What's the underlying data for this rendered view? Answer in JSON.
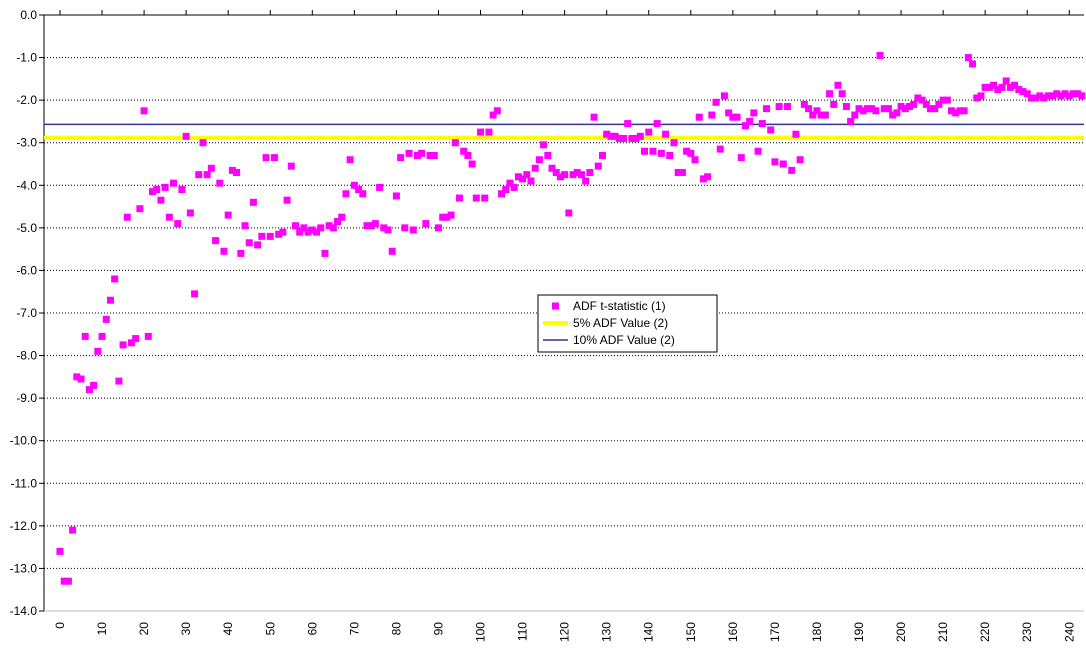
{
  "chart_data": {
    "type": "scatter",
    "x": [
      0,
      1,
      2,
      3,
      4,
      5,
      6,
      7,
      8,
      9,
      10,
      11,
      12,
      13,
      14,
      15,
      16,
      17,
      18,
      19,
      20,
      21,
      22,
      23,
      24,
      25,
      26,
      27,
      28,
      29,
      30,
      31,
      32,
      33,
      34,
      35,
      36,
      37,
      38,
      39,
      40,
      41,
      42,
      43,
      44,
      45,
      46,
      47,
      48,
      49,
      50,
      51,
      52,
      53,
      54,
      55,
      56,
      57,
      58,
      59,
      60,
      61,
      62,
      63,
      64,
      65,
      66,
      67,
      68,
      69,
      70,
      71,
      72,
      73,
      74,
      75,
      76,
      77,
      78,
      79,
      80,
      81,
      82,
      83,
      84,
      85,
      86,
      87,
      88,
      89,
      90,
      91,
      92,
      93,
      94,
      95,
      96,
      97,
      98,
      99,
      100,
      101,
      102,
      103,
      104,
      105,
      106,
      107,
      108,
      109,
      110,
      111,
      112,
      113,
      114,
      115,
      116,
      117,
      118,
      119,
      120,
      121,
      122,
      123,
      124,
      125,
      126,
      127,
      128,
      129,
      130,
      131,
      132,
      133,
      134,
      135,
      136,
      137,
      138,
      139,
      140,
      141,
      142,
      143,
      144,
      145,
      146,
      147,
      148,
      149,
      150,
      151,
      152,
      153,
      154,
      155,
      156,
      157,
      158,
      159,
      160,
      161,
      162,
      163,
      164,
      165,
      166,
      167,
      168,
      169,
      170,
      171,
      172,
      173,
      174,
      175,
      176,
      177,
      178,
      179,
      180,
      181,
      182,
      183,
      184,
      185,
      186,
      187,
      188,
      189,
      190,
      191,
      192,
      193,
      194,
      195,
      196,
      197,
      198,
      199,
      200,
      201,
      202,
      203,
      204,
      205,
      206,
      207,
      208,
      209,
      210,
      211,
      212,
      213,
      214,
      215,
      216,
      217,
      218,
      219,
      220,
      221,
      222,
      223,
      224,
      225,
      226,
      227,
      228,
      229,
      230,
      231,
      232,
      233,
      234,
      235,
      236,
      237,
      238,
      239,
      240,
      241,
      242,
      243
    ],
    "series": [
      {
        "name": "ADF t-statistic (1)",
        "color": "#ff00ff",
        "values": [
          -12.6,
          -13.3,
          -13.3,
          -12.1,
          -8.5,
          -8.55,
          -7.55,
          -8.8,
          -8.7,
          -7.9,
          -7.55,
          -7.15,
          -6.7,
          -6.2,
          -8.6,
          -7.75,
          -4.75,
          -7.7,
          -7.6,
          -4.55,
          -2.25,
          -7.55,
          -4.15,
          -4.1,
          -4.35,
          -4.05,
          -4.75,
          -3.95,
          -4.9,
          -4.1,
          -2.85,
          -4.65,
          -6.55,
          -3.75,
          -3.0,
          -3.75,
          -3.6,
          -5.3,
          -3.95,
          -5.55,
          -4.7,
          -3.65,
          -3.7,
          -5.6,
          -4.95,
          -5.35,
          -4.4,
          -5.4,
          -5.2,
          -3.35,
          -5.2,
          -3.35,
          -5.15,
          -5.1,
          -4.35,
          -3.55,
          -4.95,
          -5.1,
          -5.0,
          -5.1,
          -5.05,
          -5.1,
          -5.0,
          -5.6,
          -4.95,
          -5.0,
          -4.85,
          -4.75,
          -4.2,
          -3.4,
          -4.0,
          -4.1,
          -4.2,
          -4.95,
          -4.95,
          -4.9,
          -4.05,
          -5.0,
          -5.05,
          -5.55,
          -4.25,
          -3.35,
          -5.0,
          -3.25,
          -5.05,
          -3.3,
          -3.25,
          -4.9,
          -3.3,
          -3.3,
          -5.0,
          -4.75,
          -4.75,
          -4.7,
          -3.0,
          -4.3,
          -3.2,
          -3.3,
          -3.5,
          -4.3,
          -2.75,
          -4.3,
          -2.75,
          -2.35,
          -2.25,
          -4.2,
          -4.1,
          -3.95,
          -4.05,
          -3.8,
          -3.85,
          -3.75,
          -3.9,
          -3.6,
          -3.4,
          -3.05,
          -3.3,
          -3.6,
          -3.7,
          -3.8,
          -3.75,
          -4.65,
          -3.75,
          -3.7,
          -3.75,
          -3.9,
          -3.7,
          -2.4,
          -3.55,
          -3.3,
          -2.8,
          -2.85,
          -2.85,
          -2.9,
          -2.9,
          -2.55,
          -2.9,
          -2.9,
          -2.85,
          -3.2,
          -2.75,
          -3.2,
          -2.55,
          -3.25,
          -2.8,
          -3.3,
          -3.0,
          -3.7,
          -3.7,
          -3.2,
          -3.25,
          -3.4,
          -2.4,
          -3.85,
          -3.8,
          -2.35,
          -2.05,
          -3.15,
          -1.9,
          -2.3,
          -2.4,
          -2.4,
          -3.35,
          -2.6,
          -2.5,
          -2.3,
          -3.2,
          -2.55,
          -2.2,
          -2.7,
          -3.45,
          -2.15,
          -3.5,
          -2.15,
          -3.65,
          -2.8,
          -3.4,
          -2.1,
          -2.2,
          -2.35,
          -2.25,
          -2.35,
          -2.35,
          -1.85,
          -2.1,
          -1.65,
          -1.85,
          -2.15,
          -2.5,
          -2.35,
          -2.2,
          -2.25,
          -2.2,
          -2.2,
          -2.25,
          -0.95,
          -2.2,
          -2.2,
          -2.35,
          -2.3,
          -2.15,
          -2.2,
          -2.15,
          -2.1,
          -1.95,
          -2.0,
          -2.1,
          -2.2,
          -2.2,
          -2.1,
          -2.0,
          -2.0,
          -2.25,
          -2.3,
          -2.25,
          -2.25,
          -1.0,
          -1.15,
          -1.95,
          -1.9,
          -1.7,
          -1.7,
          -1.65,
          -1.75,
          -1.7,
          -1.55,
          -1.7,
          -1.65,
          -1.75,
          -1.8,
          -1.85,
          -1.95,
          -1.95,
          -1.9,
          -1.95,
          -1.9,
          -1.9,
          -1.85,
          -1.9,
          -1.85,
          -1.9,
          -1.85,
          -1.85,
          -1.9
        ]
      }
    ],
    "lines": [
      {
        "name": "5% ADF Value (2)",
        "color": "#ffff00",
        "value": -2.88
      },
      {
        "name": "10% ADF Value (2)",
        "color": "#333399",
        "value": -2.57
      }
    ],
    "xlim": [
      -3.8,
      243.5
    ],
    "ylim": [
      -14,
      0
    ],
    "xticks": [
      0,
      10,
      20,
      30,
      40,
      50,
      60,
      70,
      80,
      90,
      100,
      110,
      120,
      130,
      140,
      150,
      160,
      170,
      180,
      190,
      200,
      210,
      220,
      230,
      240
    ],
    "yticks": [
      {
        "value": 0,
        "label": "0.0"
      },
      {
        "value": -1,
        "label": "-1.0"
      },
      {
        "value": -2,
        "label": "-2.0"
      },
      {
        "value": -3,
        "label": "-3.0"
      },
      {
        "value": -4,
        "label": "-4.0"
      },
      {
        "value": -5,
        "label": "-5.0"
      },
      {
        "value": -6,
        "label": "-6.0"
      },
      {
        "value": -7,
        "label": "-7.0"
      },
      {
        "value": -8,
        "label": "-8.0"
      },
      {
        "value": -9,
        "label": "-9.0"
      },
      {
        "value": -10,
        "label": "-10.0"
      },
      {
        "value": -11,
        "label": "-11.0"
      },
      {
        "value": -12,
        "label": "-12.0"
      },
      {
        "value": -13,
        "label": "-13.0"
      },
      {
        "value": -14,
        "label": "-14.0"
      }
    ],
    "grid": true
  }
}
